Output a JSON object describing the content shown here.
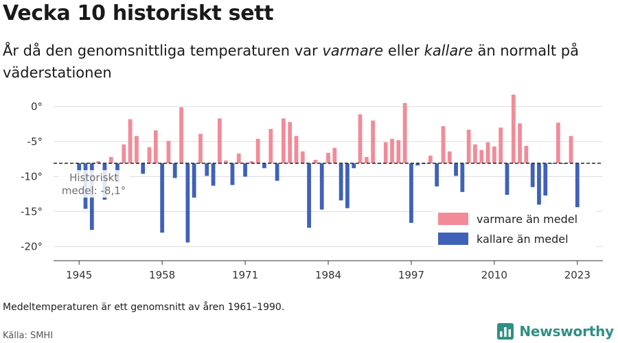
{
  "header": {
    "title": "Vecka 10 historiskt sett",
    "subtitle_parts": [
      "År då den genomsnittliga temperaturen var ",
      "varmare",
      " eller ",
      "kallare",
      " än normalt på väderstationen"
    ]
  },
  "chart_data": {
    "type": "bar",
    "baseline": -8.1,
    "baseline_label_line1": "Historiskt",
    "baseline_label_line2": "medel: -8,1°",
    "ylim": [
      -22,
      1.5
    ],
    "xlim": [
      1941,
      2027
    ],
    "y_ticks": [
      0,
      -5,
      -10,
      -15,
      -20
    ],
    "y_tick_labels": [
      "0°",
      "-5°",
      "-10°",
      "-15°",
      "-20°"
    ],
    "x_ticks": [
      1945,
      1958,
      1971,
      1984,
      1997,
      2010,
      2023
    ],
    "x_tick_labels": [
      "1945",
      "1958",
      "1971",
      "1984",
      "1997",
      "2010",
      "2023"
    ],
    "x": [
      1945,
      1946,
      1947,
      1948,
      1949,
      1950,
      1951,
      1952,
      1953,
      1954,
      1955,
      1956,
      1957,
      1958,
      1959,
      1960,
      1961,
      1962,
      1963,
      1964,
      1965,
      1966,
      1967,
      1968,
      1969,
      1970,
      1971,
      1972,
      1973,
      1974,
      1975,
      1976,
      1977,
      1978,
      1979,
      1980,
      1981,
      1982,
      1983,
      1984,
      1985,
      1986,
      1987,
      1988,
      1989,
      1990,
      1991,
      1992,
      1993,
      1994,
      1995,
      1996,
      1997,
      1998,
      1999,
      2000,
      2001,
      2002,
      2003,
      2004,
      2005,
      2006,
      2007,
      2008,
      2009,
      2010,
      2011,
      2012,
      2013,
      2014,
      2015,
      2016,
      2017,
      2018,
      2019,
      2020,
      2021,
      2022,
      2023
    ],
    "values": [
      -9.4,
      -14.6,
      -17.6,
      -7.8,
      -13.3,
      -7.2,
      -10.8,
      -5.4,
      -1.8,
      -4.2,
      -9.6,
      -5.8,
      -3.4,
      -18.0,
      -4.9,
      -10.2,
      -0.1,
      -19.4,
      -13.0,
      -3.9,
      -9.9,
      -11.3,
      -1.7,
      -7.7,
      -11.2,
      -6.7,
      -10.0,
      -7.8,
      -4.6,
      -8.8,
      -3.2,
      -10.6,
      -1.7,
      -2.2,
      -4.2,
      -6.4,
      -17.3,
      -7.6,
      -14.7,
      -6.6,
      -5.9,
      -13.4,
      -14.5,
      -8.8,
      -1.1,
      -7.2,
      -2.0,
      -8.2,
      -5.1,
      -4.6,
      -4.8,
      0.5,
      -16.6,
      -8.4,
      -8.2,
      -7.0,
      -11.4,
      -2.8,
      -6.4,
      -9.9,
      -12.2,
      -3.3,
      -5.4,
      -6.2,
      -5.1,
      -5.7,
      -3.0,
      -12.6,
      1.7,
      -2.4,
      -5.6,
      -11.5,
      -14.0,
      -12.7,
      -8.1,
      -2.3,
      -8.2,
      -4.2,
      -14.8
    ],
    "series": [
      {
        "name": "varmare än medel",
        "color": "#f28b98"
      },
      {
        "name": "kallare än medel",
        "color": "#3f61b8"
      }
    ],
    "legend_position": "bottom-right",
    "grid": true
  },
  "footer": {
    "note": "Medeltemperaturen är ett genomsnitt av åren 1961–1990.",
    "source": "Källa: SMHI",
    "brand": "Newsworthy",
    "brand_color": "#2f8f84"
  }
}
